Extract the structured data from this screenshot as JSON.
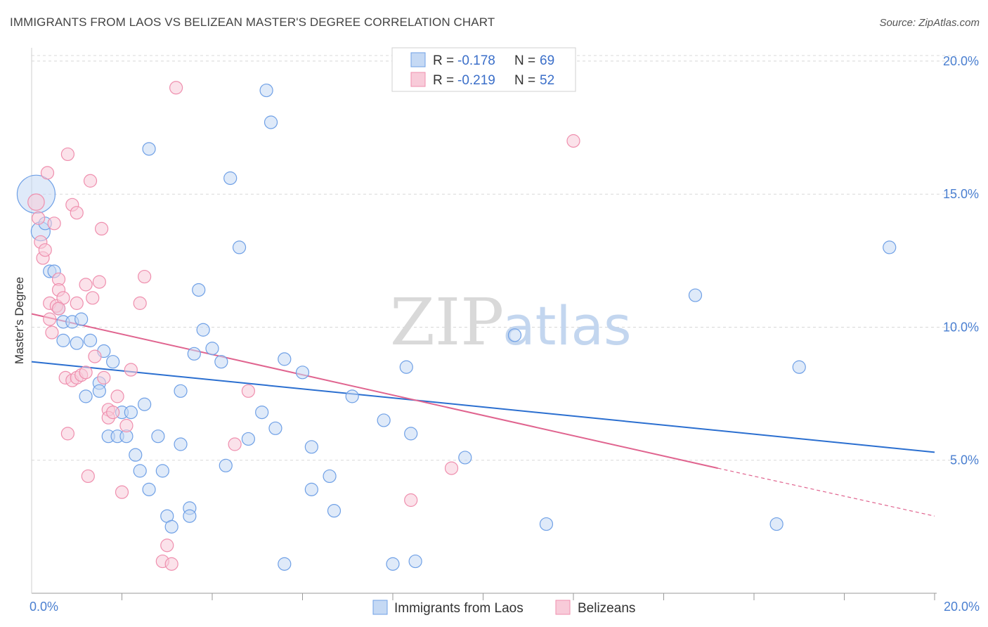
{
  "title": "IMMIGRANTS FROM LAOS VS BELIZEAN MASTER'S DEGREE CORRELATION CHART",
  "source": "Source: ZipAtlas.com",
  "watermark": {
    "zip": "ZIP",
    "atlas": "atlas"
  },
  "colors": {
    "blue": "#6fa0e6",
    "blue_fill": "#c5d9f4",
    "blue_line": "#2b6fd0",
    "pink": "#ef8fae",
    "pink_fill": "#f8cbd9",
    "pink_line": "#e0648f",
    "grid": "#d8d8d8",
    "tick_text": "#4a7fd0"
  },
  "legend": {
    "rows": [
      {
        "r_label": "R = ",
        "r_value": "-0.178",
        "n_label": "N = ",
        "n_value": "69"
      },
      {
        "r_label": "R = ",
        "r_value": "-0.219",
        "n_label": "N = ",
        "n_value": "52"
      }
    ]
  },
  "bottom_legend": [
    "Immigrants from Laos",
    "Belizeans"
  ],
  "chart_data": {
    "type": "scatter",
    "title": "IMMIGRANTS FROM LAOS VS BELIZEAN MASTER'S DEGREE CORRELATION CHART",
    "xlabel": "",
    "ylabel": "Master's Degree",
    "xlim": [
      0,
      20
    ],
    "ylim": [
      0,
      20.5
    ],
    "x_tick_labels": [
      "0.0%",
      "20.0%"
    ],
    "y_ticks": [
      5,
      10,
      15,
      20
    ],
    "y_tick_labels": [
      "5.0%",
      "10.0%",
      "15.0%",
      "20.0%"
    ],
    "grid": true,
    "legend_position": "top-center",
    "series": [
      {
        "name": "Immigrants from Laos",
        "color": "#6fa0e6",
        "trend": {
          "x": [
            0,
            20
          ],
          "y": [
            8.7,
            5.3
          ]
        },
        "points": [
          [
            0.1,
            15.0,
            3
          ],
          [
            0.2,
            13.6,
            1.5
          ],
          [
            0.3,
            13.9,
            1
          ],
          [
            0.4,
            12.1,
            1
          ],
          [
            0.5,
            12.1,
            1
          ],
          [
            0.6,
            10.7,
            1
          ],
          [
            0.7,
            10.2,
            1
          ],
          [
            0.9,
            10.2,
            1
          ],
          [
            1.1,
            10.3,
            1
          ],
          [
            0.7,
            9.5,
            1
          ],
          [
            1.0,
            9.4,
            1
          ],
          [
            1.3,
            9.5,
            1
          ],
          [
            1.6,
            9.1,
            1
          ],
          [
            1.8,
            8.7,
            1
          ],
          [
            1.2,
            7.4,
            1
          ],
          [
            1.5,
            7.9,
            1
          ],
          [
            1.5,
            7.6,
            1
          ],
          [
            1.7,
            5.9,
            1
          ],
          [
            1.9,
            5.9,
            1
          ],
          [
            2.1,
            5.9,
            1
          ],
          [
            2.0,
            6.8,
            1
          ],
          [
            2.2,
            6.8,
            1
          ],
          [
            2.5,
            7.1,
            1
          ],
          [
            2.3,
            5.2,
            1
          ],
          [
            2.4,
            4.6,
            1
          ],
          [
            2.6,
            3.9,
            1
          ],
          [
            2.8,
            5.9,
            1
          ],
          [
            2.9,
            4.6,
            1
          ],
          [
            3.0,
            2.9,
            1
          ],
          [
            3.1,
            2.5,
            1
          ],
          [
            3.3,
            7.6,
            1
          ],
          [
            3.3,
            5.6,
            1
          ],
          [
            3.5,
            3.2,
            1
          ],
          [
            3.5,
            2.9,
            1
          ],
          [
            2.6,
            16.7,
            1
          ],
          [
            3.6,
            9.0,
            1
          ],
          [
            3.7,
            11.4,
            1
          ],
          [
            3.8,
            9.9,
            1
          ],
          [
            4.0,
            9.2,
            1
          ],
          [
            4.2,
            8.7,
            1
          ],
          [
            4.3,
            4.8,
            1
          ],
          [
            4.4,
            15.6,
            1
          ],
          [
            4.6,
            13.0,
            1
          ],
          [
            4.8,
            5.8,
            1
          ],
          [
            5.1,
            6.8,
            1
          ],
          [
            5.2,
            18.9,
            1
          ],
          [
            5.3,
            17.7,
            1
          ],
          [
            5.4,
            6.2,
            1
          ],
          [
            5.6,
            8.8,
            1
          ],
          [
            5.6,
            1.1,
            1
          ],
          [
            6.0,
            8.3,
            1
          ],
          [
            6.2,
            5.5,
            1
          ],
          [
            6.2,
            3.9,
            1
          ],
          [
            6.6,
            4.4,
            1
          ],
          [
            6.7,
            3.1,
            1
          ],
          [
            7.1,
            7.4,
            1
          ],
          [
            7.8,
            6.5,
            1
          ],
          [
            8.0,
            1.1,
            1
          ],
          [
            8.3,
            8.5,
            1
          ],
          [
            8.4,
            6.0,
            1
          ],
          [
            8.5,
            1.2,
            1
          ],
          [
            9.6,
            5.1,
            1
          ],
          [
            10.7,
            9.7,
            1
          ],
          [
            11.4,
            2.6,
            1
          ],
          [
            14.7,
            11.2,
            1
          ],
          [
            16.5,
            2.6,
            1
          ],
          [
            17.0,
            8.5,
            1
          ],
          [
            19.0,
            13.0,
            1
          ],
          [
            7.6,
            6.6,
            0.01
          ]
        ]
      },
      {
        "name": "Belizeans",
        "color": "#ef8fae",
        "trend": {
          "x": [
            0,
            15.2
          ],
          "y": [
            10.5,
            4.7
          ]
        },
        "trend_dashed": {
          "x": [
            15.2,
            20
          ],
          "y": [
            4.7,
            2.9
          ]
        },
        "points": [
          [
            0.1,
            14.7,
            1.3
          ],
          [
            0.15,
            14.1,
            1
          ],
          [
            0.2,
            13.2,
            1
          ],
          [
            0.25,
            12.6,
            1
          ],
          [
            0.3,
            12.9,
            1
          ],
          [
            0.35,
            15.8,
            1
          ],
          [
            0.4,
            10.9,
            1
          ],
          [
            0.4,
            10.3,
            1
          ],
          [
            0.45,
            9.8,
            1
          ],
          [
            0.5,
            13.9,
            1
          ],
          [
            0.55,
            10.8,
            1
          ],
          [
            0.6,
            11.8,
            1
          ],
          [
            0.6,
            11.4,
            1
          ],
          [
            0.7,
            11.1,
            1
          ],
          [
            0.75,
            8.1,
            1
          ],
          [
            0.8,
            6.0,
            1
          ],
          [
            0.8,
            16.5,
            1
          ],
          [
            0.9,
            8.0,
            1
          ],
          [
            0.9,
            14.6,
            1
          ],
          [
            1.0,
            14.3,
            1
          ],
          [
            1.0,
            8.1,
            1
          ],
          [
            1.0,
            10.9,
            1
          ],
          [
            1.1,
            8.2,
            1
          ],
          [
            1.2,
            11.6,
            1
          ],
          [
            1.2,
            8.3,
            1
          ],
          [
            1.25,
            4.4,
            1
          ],
          [
            1.3,
            15.5,
            1
          ],
          [
            1.35,
            11.1,
            1
          ],
          [
            1.4,
            8.9,
            1
          ],
          [
            1.5,
            11.7,
            1
          ],
          [
            1.55,
            13.7,
            1
          ],
          [
            1.6,
            8.1,
            1
          ],
          [
            1.7,
            6.9,
            1
          ],
          [
            1.7,
            6.6,
            1
          ],
          [
            1.8,
            6.8,
            1
          ],
          [
            1.9,
            7.4,
            1
          ],
          [
            2.0,
            3.8,
            1
          ],
          [
            2.1,
            6.3,
            1
          ],
          [
            2.2,
            8.4,
            1
          ],
          [
            2.4,
            10.9,
            1
          ],
          [
            2.5,
            11.9,
            1
          ],
          [
            2.9,
            1.2,
            1
          ],
          [
            3.0,
            1.8,
            1
          ],
          [
            3.1,
            1.1,
            1
          ],
          [
            3.2,
            19.0,
            1
          ],
          [
            4.5,
            5.6,
            1
          ],
          [
            4.8,
            7.6,
            1
          ],
          [
            8.4,
            3.5,
            1
          ],
          [
            9.3,
            4.7,
            1
          ],
          [
            12.0,
            17.0,
            1
          ],
          [
            0.6,
            10.7,
            1
          ],
          [
            1.5,
            6.7,
            0.01
          ]
        ]
      }
    ]
  }
}
